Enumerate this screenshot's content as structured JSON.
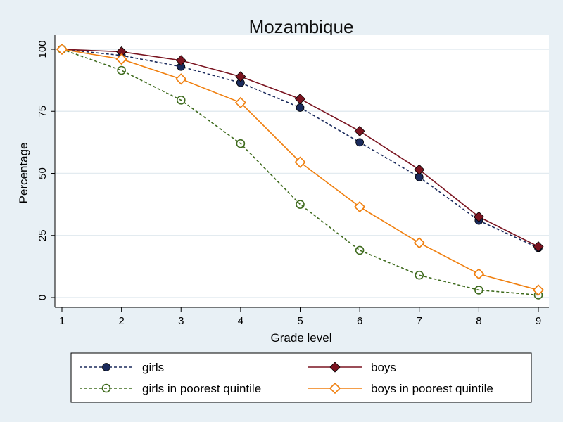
{
  "chart_data": {
    "type": "line",
    "title": "Mozambique",
    "xlabel": "Grade level",
    "ylabel": "Percentage",
    "x": [
      1,
      2,
      3,
      4,
      5,
      6,
      7,
      8,
      9
    ],
    "xlim": [
      1,
      9
    ],
    "ylim": [
      0,
      100
    ],
    "xticks": [
      1,
      2,
      3,
      4,
      5,
      6,
      7,
      8,
      9
    ],
    "yticks": [
      0,
      25,
      50,
      75,
      100
    ],
    "grid": true,
    "legend_position": "bottom",
    "series": [
      {
        "name": "girls",
        "values": [
          100,
          97.5,
          93,
          86.5,
          76.5,
          62.5,
          48.5,
          31,
          20
        ],
        "color": "#1a2a5c",
        "line_style": "dashed",
        "marker": "filled-circle"
      },
      {
        "name": "boys",
        "values": [
          100,
          99,
          95.5,
          89,
          80,
          67,
          51.5,
          32.5,
          20.5
        ],
        "color": "#7a1420",
        "line_style": "solid",
        "marker": "filled-diamond"
      },
      {
        "name": "girls in poorest quintile",
        "values": [
          100,
          91.5,
          79.5,
          62,
          37.5,
          19,
          9,
          3,
          1
        ],
        "color": "#3f6b1e",
        "line_style": "dashed",
        "marker": "hollow-circle"
      },
      {
        "name": "boys in poorest quintile",
        "values": [
          100,
          96,
          88,
          78.5,
          54.5,
          36.5,
          22,
          9.5,
          3
        ],
        "color": "#f07f0e",
        "line_style": "solid",
        "marker": "hollow-diamond"
      }
    ]
  }
}
